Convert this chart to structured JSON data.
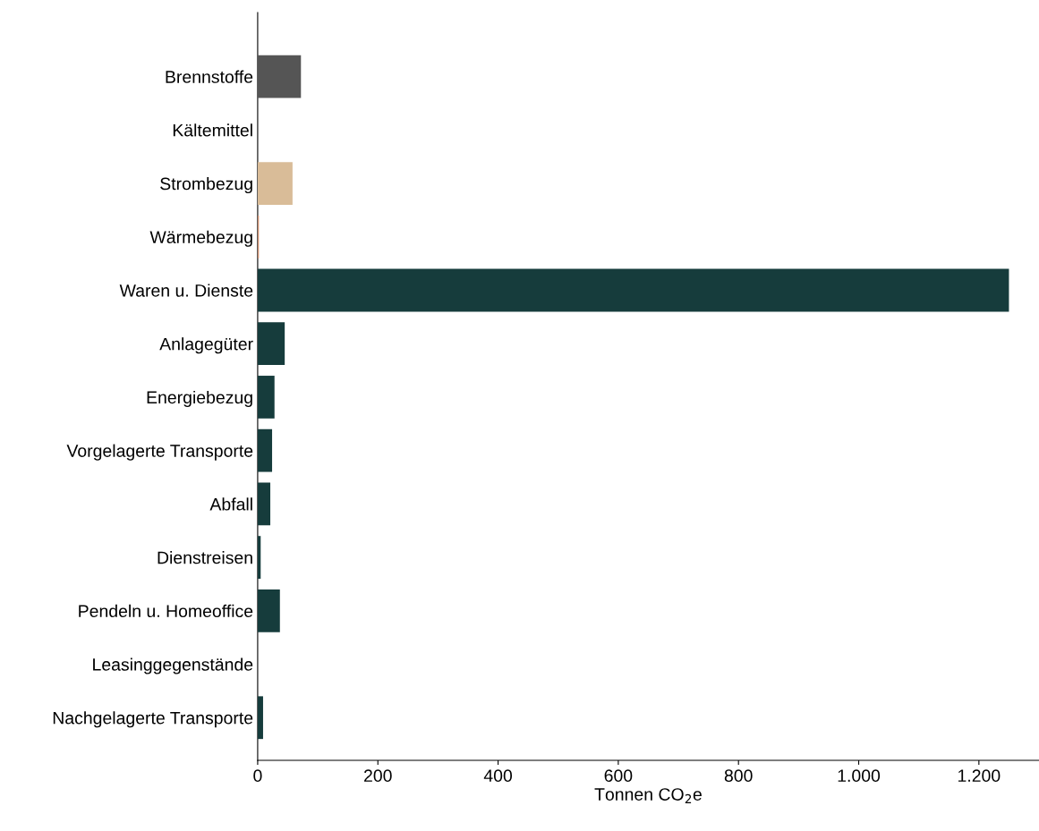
{
  "chart_data": {
    "type": "bar",
    "orientation": "horizontal",
    "xlabel": "Tonnen CO$_{2}$e",
    "categories": [
      "Brennstoffe",
      "Kältemittel",
      "Strombezug",
      "Wärmebezug",
      "Waren u. Dienste",
      "Anlagegüter",
      "Energiebezug",
      "Vorgelagerte Transporte",
      "Abfall",
      "Dienstreisen",
      "Pendeln u. Homeoffice",
      "Leasinggegenstände",
      "Nachgelagerte Transporte"
    ],
    "values": [
      72,
      0,
      58,
      2,
      1250,
      45,
      28,
      24,
      21,
      5,
      37,
      0,
      9
    ],
    "colors": [
      "#555555",
      "#555555",
      "#d9bc98",
      "#c98a6a",
      "#163c3c",
      "#163c3c",
      "#163c3c",
      "#163c3c",
      "#163c3c",
      "#163c3c",
      "#163c3c",
      "#163c3c",
      "#163c3c"
    ],
    "xlim": [
      0,
      1300
    ],
    "xticks": [
      0,
      200,
      400,
      600,
      800,
      {
        "value": 1000,
        "label": "1.000"
      },
      {
        "value": 1200,
        "label": "1.200"
      }
    ],
    "grid": false,
    "legend": false
  }
}
